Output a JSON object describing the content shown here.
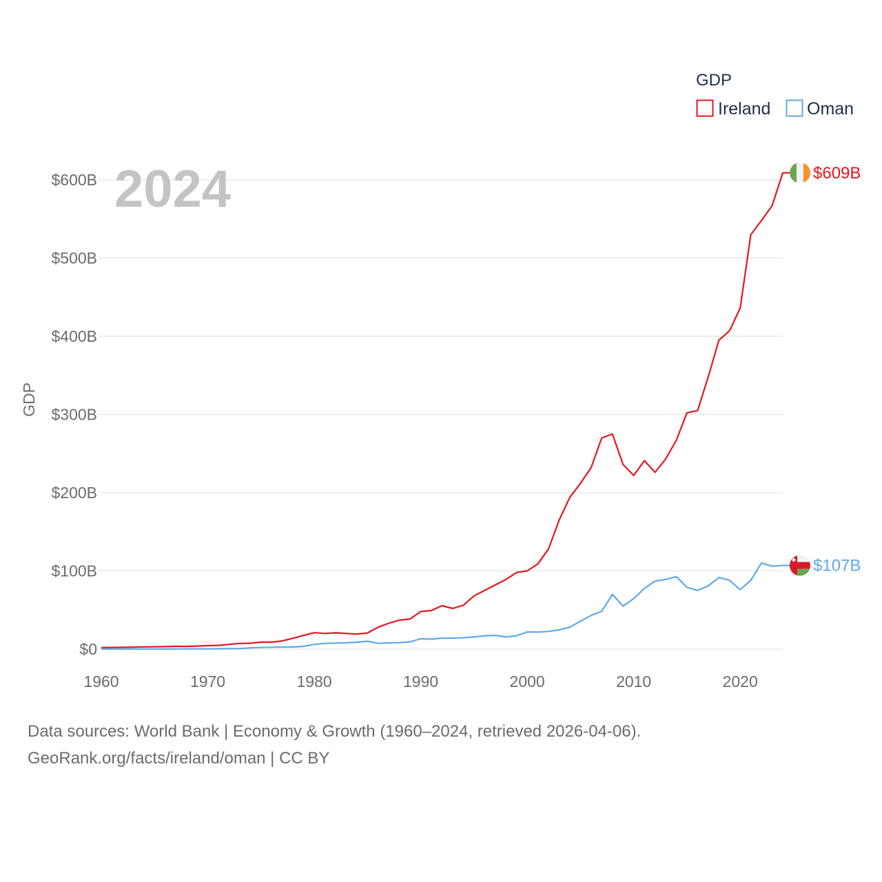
{
  "chart_data": {
    "type": "line",
    "year_label": "2024",
    "ylabel": "GDP",
    "xlabel": "",
    "legend": {
      "title": "GDP",
      "position": "top-right"
    },
    "xlim": [
      1960,
      2024
    ],
    "ylim": [
      0,
      600
    ],
    "x_ticks": [
      "1960",
      "1970",
      "1980",
      "1990",
      "2000",
      "2010",
      "2020"
    ],
    "y_ticks": [
      {
        "value": 0,
        "label": "$0"
      },
      {
        "value": 100,
        "label": "$100B"
      },
      {
        "value": 200,
        "label": "$200B"
      },
      {
        "value": 300,
        "label": "$300B"
      },
      {
        "value": 400,
        "label": "$400B"
      },
      {
        "value": 500,
        "label": "$500B"
      },
      {
        "value": 600,
        "label": "$600B"
      }
    ],
    "units": "billions USD",
    "x": [
      1960,
      1961,
      1962,
      1963,
      1964,
      1965,
      1966,
      1967,
      1968,
      1969,
      1970,
      1971,
      1972,
      1973,
      1974,
      1975,
      1976,
      1977,
      1978,
      1979,
      1980,
      1981,
      1982,
      1983,
      1984,
      1985,
      1986,
      1987,
      1988,
      1989,
      1990,
      1991,
      1992,
      1993,
      1994,
      1995,
      1996,
      1997,
      1998,
      1999,
      2000,
      2001,
      2002,
      2003,
      2004,
      2005,
      2006,
      2007,
      2008,
      2009,
      2010,
      2011,
      2012,
      2013,
      2014,
      2015,
      2016,
      2017,
      2018,
      2019,
      2020,
      2021,
      2022,
      2023,
      2024
    ],
    "series": [
      {
        "name": "Ireland",
        "color": "#e8141c",
        "end_label": "$609B",
        "values": [
          1.9,
          2.1,
          2.3,
          2.5,
          2.8,
          3.0,
          3.2,
          3.5,
          3.4,
          3.9,
          4.4,
          4.8,
          6.0,
          7.2,
          7.5,
          8.9,
          8.9,
          10.5,
          13.8,
          17.5,
          21.0,
          20.0,
          20.8,
          20.0,
          19.2,
          20.6,
          28.0,
          33.0,
          37.0,
          38.4,
          48.0,
          49.3,
          55.5,
          52.0,
          56.0,
          68.0,
          75.0,
          82.0,
          89.0,
          98.0,
          100.0,
          109.0,
          128.0,
          165.0,
          194.0,
          212.0,
          232.0,
          270.0,
          275.0,
          236.0,
          222.0,
          241.0,
          226.0,
          243.0,
          267.0,
          302.0,
          305.0,
          348.0,
          395.0,
          407.0,
          436.0,
          530.0,
          548.0,
          567.0,
          609.0
        ]
      },
      {
        "name": "Oman",
        "color": "#5ea8e6",
        "end_label": "$107B",
        "values": [
          0.1,
          0.1,
          0.1,
          0.1,
          0.1,
          0.1,
          0.1,
          0.2,
          0.3,
          0.3,
          0.3,
          0.4,
          0.5,
          0.6,
          1.6,
          2.1,
          2.4,
          2.6,
          2.6,
          3.5,
          6.0,
          7.3,
          7.7,
          8.0,
          8.8,
          10.0,
          7.3,
          7.9,
          8.2,
          9.3,
          13.2,
          12.8,
          14.0,
          14.1,
          14.5,
          15.5,
          17.0,
          17.5,
          15.4,
          17.2,
          21.9,
          21.8,
          22.6,
          24.5,
          28.0,
          35.7,
          43.0,
          48.5,
          70.0,
          55.0,
          64.6,
          77.5,
          87.0,
          89.0,
          92.7,
          79.0,
          75.0,
          80.9,
          91.5,
          88.0,
          76.0,
          88.0,
          110.0,
          106.0,
          107.0
        ]
      }
    ]
  },
  "footer": {
    "line1": "Data sources: World Bank | Economy & Growth (1960–2024, retrieved 2026-04-06).",
    "line2": "GeoRank.org/facts/ireland/oman | CC BY"
  },
  "icons": {
    "ireland": "ireland-flag-icon",
    "oman": "oman-flag-icon"
  }
}
